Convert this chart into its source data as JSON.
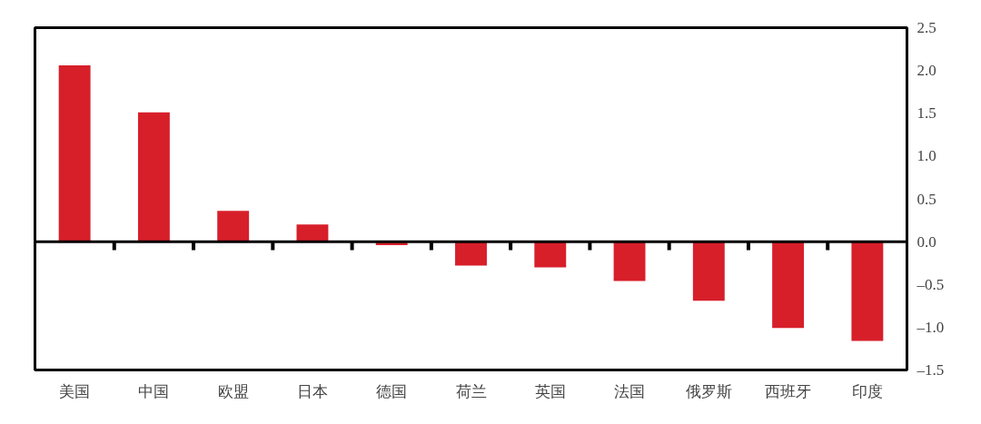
{
  "chart_data": {
    "type": "bar",
    "categories": [
      "美国",
      "中国",
      "欧盟",
      "日本",
      "德国",
      "荷兰",
      "英国",
      "法国",
      "俄罗斯",
      "西班牙",
      "印度"
    ],
    "values": [
      2.06,
      1.51,
      0.36,
      0.2,
      -0.04,
      -0.28,
      -0.3,
      -0.46,
      -0.69,
      -1.01,
      -1.16
    ],
    "color": "#d71f2a",
    "ylim": [
      -1.5,
      2.5
    ],
    "yticks": [
      {
        "value": 2.5,
        "label": "2.5"
      },
      {
        "value": 2,
        "label": "2.0"
      },
      {
        "value": 1.5,
        "label": "1.5"
      },
      {
        "value": 1,
        "label": "1.0"
      },
      {
        "value": 0.5,
        "label": "0.5"
      },
      {
        "value": 0,
        "label": "0.0"
      },
      {
        "value": -0.5,
        "label": "–0.5"
      },
      {
        "value": -1,
        "label": "–1.0"
      },
      {
        "value": -1.5,
        "label": "–1.5"
      }
    ]
  }
}
